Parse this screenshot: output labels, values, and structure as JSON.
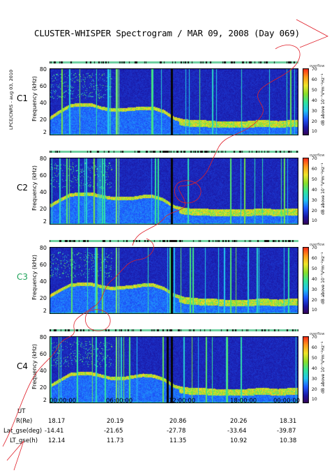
{
  "title": "CLUSTER-WHISPER Spectrogram / MAR 09, 2008 (Day 069)",
  "side_note": "LPCE/CNRS - aug 03, 2010",
  "colorbar": {
    "label": "dB above 10⁻⁷V²m⁻²Hz⁻¹",
    "top_label": "overflow",
    "ticks": [
      "70",
      "60",
      "50",
      "40",
      "30",
      "20",
      "10"
    ],
    "colors": [
      "#3b004f",
      "#1a1aa8",
      "#1e5bff",
      "#22c7f0",
      "#33e69a",
      "#8be02a",
      "#f0e62a",
      "#ff9a1a",
      "#ff2a1a"
    ]
  },
  "y_axis": {
    "label": "Frequency (kHz)",
    "ticks": [
      "80",
      "60",
      "40",
      "20",
      "2"
    ]
  },
  "panels": [
    {
      "label": "C1",
      "label_color": "#000000"
    },
    {
      "label": "C2",
      "label_color": "#000000"
    },
    {
      "label": "C3",
      "label_color": "#1fa35a"
    },
    {
      "label": "C4",
      "label_color": "#000000"
    }
  ],
  "footer": {
    "rows": [
      {
        "label": "UT",
        "values": [
          "00:00:00",
          "06:00:00",
          "12:00:00",
          "18:00:00",
          "00:00:00"
        ]
      },
      {
        "label": "R(Re)",
        "values": [
          "18.17",
          "20.19",
          "20.86",
          "20.26",
          "18.31"
        ]
      },
      {
        "label": "Lat_gse(deg)",
        "values": [
          "-14.41",
          "-21.65",
          "-27.78",
          "-33.64",
          "-39.87"
        ]
      },
      {
        "label": "LT_gse(h)",
        "values": [
          "12.14",
          "11.73",
          "11.35",
          "10.92",
          "10.38"
        ]
      }
    ]
  },
  "chart_data": {
    "type": "heatmap",
    "title": "CLUSTER-WHISPER Spectrogram / MAR 09, 2008 (Day 069)",
    "xlabel": "UT",
    "ylabel": "Frequency (kHz)",
    "x_ticks": [
      "00:00:00",
      "06:00:00",
      "12:00:00",
      "18:00:00",
      "00:00:00"
    ],
    "y_ticks": [
      2,
      20,
      40,
      60,
      80
    ],
    "ylim": [
      2,
      80
    ],
    "colorbar_range": [
      10,
      70
    ],
    "colorbar_unit": "dB above 10⁻⁷V²m⁻²Hz⁻¹",
    "series": [
      {
        "name": "C1",
        "plasma_line_hours": [
          0,
          1,
          2,
          3,
          4,
          5,
          6,
          7,
          8,
          9,
          10,
          11,
          12,
          13,
          14,
          15,
          16,
          17,
          18,
          19,
          20,
          21,
          22,
          23,
          24
        ],
        "plasma_line_khz": [
          22,
          30,
          37,
          38,
          38,
          34,
          32,
          32,
          33,
          34,
          34,
          30,
          22,
          19,
          18,
          18,
          17,
          17,
          17,
          17,
          18,
          18,
          17,
          18,
          18
        ]
      },
      {
        "name": "C2",
        "plasma_line_hours": [
          0,
          1,
          2,
          3,
          4,
          5,
          6,
          7,
          8,
          9,
          10,
          11,
          12,
          13,
          14,
          15,
          16,
          17,
          18,
          19,
          20,
          21,
          22,
          23,
          24
        ],
        "plasma_line_khz": [
          24,
          31,
          37,
          38,
          38,
          35,
          33,
          33,
          33,
          35,
          35,
          31,
          23,
          20,
          19,
          19,
          18,
          18,
          18,
          18,
          19,
          19,
          18,
          19,
          19
        ]
      },
      {
        "name": "C3",
        "plasma_line_hours": [
          0,
          1,
          2,
          3,
          4,
          5,
          6,
          7,
          8,
          9,
          10,
          11,
          12,
          13,
          14,
          15,
          16,
          17,
          18,
          19,
          20,
          21,
          22,
          23,
          24
        ],
        "plasma_line_khz": [
          23,
          30,
          36,
          37,
          37,
          34,
          32,
          33,
          34,
          36,
          36,
          32,
          24,
          20,
          19,
          18,
          18,
          17,
          17,
          17,
          18,
          18,
          17,
          18,
          18
        ]
      },
      {
        "name": "C4",
        "plasma_line_hours": [
          0,
          1,
          2,
          3,
          4,
          5,
          6,
          7,
          8,
          9,
          10,
          11,
          12,
          13,
          14,
          15,
          16,
          17,
          18,
          19,
          20,
          21,
          22,
          23,
          24
        ],
        "plasma_line_khz": [
          22,
          29,
          36,
          37,
          37,
          34,
          31,
          31,
          33,
          35,
          34,
          30,
          22,
          19,
          18,
          18,
          17,
          17,
          17,
          17,
          18,
          18,
          17,
          18,
          18
        ]
      }
    ]
  }
}
